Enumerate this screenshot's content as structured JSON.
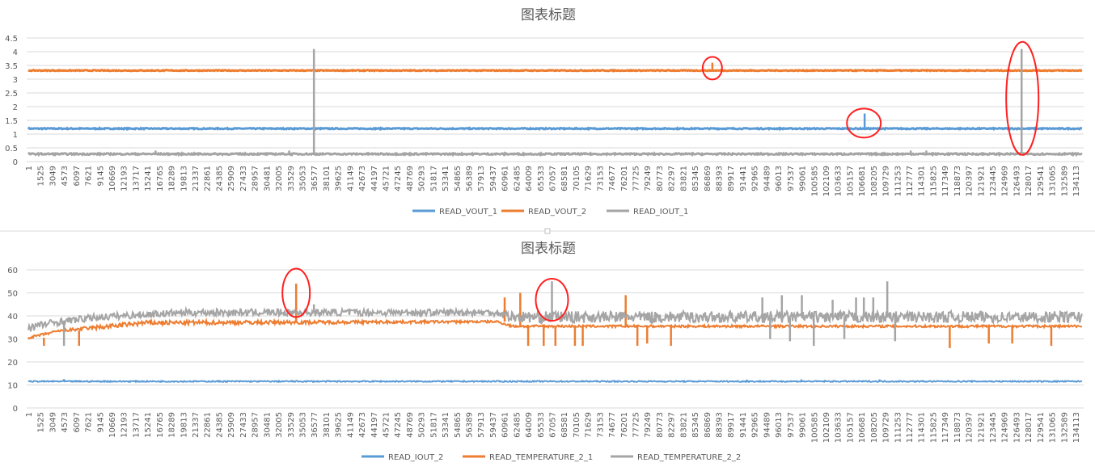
{
  "x_tick_labels": [
    "1",
    "1525",
    "3049",
    "4573",
    "6097",
    "7621",
    "9145",
    "10669",
    "12193",
    "13717",
    "15241",
    "16765",
    "18289",
    "19813",
    "21337",
    "22861",
    "24385",
    "25909",
    "27433",
    "28957",
    "30481",
    "32005",
    "33529",
    "35053",
    "36577",
    "38101",
    "39625",
    "41149",
    "42673",
    "44197",
    "45721",
    "47245",
    "48769",
    "50293",
    "51817",
    "53341",
    "54865",
    "56389",
    "57913",
    "59437",
    "60961",
    "62485",
    "64009",
    "65533",
    "67057",
    "68581",
    "70105",
    "71629",
    "73153",
    "74677",
    "76201",
    "77725",
    "79249",
    "80773",
    "82297",
    "83821",
    "85345",
    "86869",
    "88393",
    "89917",
    "91441",
    "92965",
    "94489",
    "96013",
    "97537",
    "99061",
    "100585",
    "102109",
    "103633",
    "105157",
    "106681",
    "108205",
    "109729",
    "111253",
    "112777",
    "114301",
    "115825",
    "117349",
    "118873",
    "120397",
    "121921",
    "123445",
    "124969",
    "126493",
    "128017",
    "129541",
    "131065",
    "132589",
    "134113"
  ],
  "chart_data": [
    {
      "type": "line",
      "title": "图表标题",
      "xlabel": "",
      "ylabel": "",
      "xlim": [
        1,
        134113
      ],
      "ylim": [
        0,
        4.5
      ],
      "y_ticks": [
        "0",
        "0.5",
        "1",
        "1.5",
        "2",
        "2.5",
        "3",
        "3.5",
        "4",
        "4.5"
      ],
      "grid": true,
      "legend": "bottom",
      "series": [
        {
          "name": "READ_VOUT_1",
          "color": "#5B9BD5",
          "band": [
            [
              1,
              1.18,
              1.22
            ],
            [
              134113,
              1.18,
              1.22
            ]
          ],
          "spikes": [
            [
              107100,
              1.75
            ]
          ]
        },
        {
          "name": "READ_VOUT_2",
          "color": "#ED7D31",
          "band": [
            [
              1,
              3.3,
              3.33
            ],
            [
              134113,
              3.3,
              3.33
            ]
          ],
          "spikes": [
            [
              87600,
              3.6
            ]
          ]
        },
        {
          "name": "READ_IOUT_1",
          "color": "#A5A5A5",
          "band": [
            [
              1,
              0.25,
              0.3
            ],
            [
              134113,
              0.25,
              0.3
            ]
          ],
          "spikes": [
            [
              16300,
              0.4
            ],
            [
              33400,
              0.4
            ],
            [
              36577,
              4.1
            ],
            [
              113000,
              0.4
            ],
            [
              115000,
              0.4
            ],
            [
              127200,
              4.1
            ]
          ]
        }
      ],
      "annotations": [
        [
          87600,
          3.4
        ],
        [
          107000,
          1.4
        ],
        [
          127300,
          2.3
        ]
      ]
    },
    {
      "type": "line",
      "title": "图表标题",
      "xlabel": "",
      "ylabel": "",
      "xlim": [
        1,
        134113
      ],
      "ylim": [
        0,
        60
      ],
      "y_ticks": [
        "0",
        "10",
        "20",
        "30",
        "40",
        "50",
        "60"
      ],
      "grid": true,
      "legend": "bottom",
      "series": [
        {
          "name": "READ_IOUT_2",
          "color": "#5B9BD5",
          "band": [
            [
              1,
              11.3,
              11.8
            ],
            [
              134113,
              11.3,
              11.8
            ]
          ],
          "spikes": [
            [
              4573,
              12.5
            ],
            [
              92000,
              12.3
            ],
            [
              99000,
              12.4
            ],
            [
              102000,
              12.2
            ],
            [
              109000,
              12.4
            ]
          ]
        },
        {
          "name": "READ_TEMPERATURE_2_1",
          "color": "#ED7D31",
          "band": [
            [
              1,
              30,
              31
            ],
            [
              4000,
              33,
              34
            ],
            [
              9000,
              34,
              36
            ],
            [
              15000,
              36,
              38
            ],
            [
              60000,
              37,
              38
            ],
            [
              62000,
              35,
              36
            ],
            [
              134113,
              35,
              36
            ]
          ],
          "spikes": [
            [
              2000,
              27
            ],
            [
              6500,
              27
            ],
            [
              34300,
              54
            ],
            [
              61000,
              48
            ],
            [
              63000,
              50
            ],
            [
              64009,
              27
            ],
            [
              66000,
              27
            ],
            [
              67500,
              27
            ],
            [
              70000,
              27
            ],
            [
              71000,
              27
            ],
            [
              76500,
              49
            ],
            [
              78000,
              27
            ],
            [
              79249,
              28
            ],
            [
              82297,
              27
            ],
            [
              118000,
              26
            ],
            [
              123000,
              28
            ],
            [
              126000,
              28
            ],
            [
              131000,
              27
            ]
          ]
        },
        {
          "name": "READ_TEMPERATURE_2_2",
          "color": "#A5A5A5",
          "band": [
            [
              1,
              33,
              37
            ],
            [
              4000,
              36,
              39
            ],
            [
              9000,
              38,
              41
            ],
            [
              20000,
              40,
              43
            ],
            [
              60000,
              40,
              43
            ],
            [
              62000,
              37,
              42
            ],
            [
              134113,
              37,
              42
            ]
          ],
          "spikes": [
            [
              4573,
              27
            ],
            [
              36577,
              45
            ],
            [
              67057,
              55
            ],
            [
              94000,
              48
            ],
            [
              95000,
              30
            ],
            [
              96500,
              49
            ],
            [
              97537,
              29
            ],
            [
              99061,
              49
            ],
            [
              100585,
              27
            ],
            [
              103000,
              47
            ],
            [
              104500,
              30
            ],
            [
              106000,
              48
            ],
            [
              107000,
              48
            ],
            [
              108205,
              48
            ],
            [
              110000,
              55
            ],
            [
              111000,
              29
            ]
          ]
        }
      ],
      "annotations": [
        [
          34300,
          50
        ],
        [
          67057,
          47
        ]
      ]
    }
  ]
}
